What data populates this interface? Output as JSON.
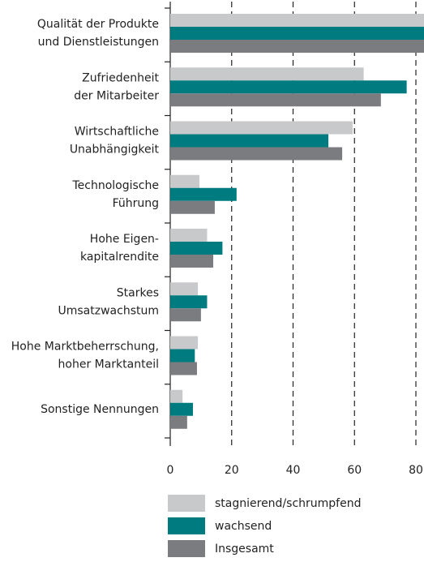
{
  "chart_data": {
    "type": "hbar",
    "categories": [
      [
        "Qualität der Produkte",
        "und Dienstleistungen"
      ],
      [
        "Zufriedenheit",
        "der Mitarbeiter"
      ],
      [
        "Wirtschaftliche",
        "Unabhängigkeit"
      ],
      [
        "Technologische",
        "Führung"
      ],
      [
        "Hohe Eigen-",
        "kapitalrendite"
      ],
      [
        "Starkes",
        "Umsatzwachstum"
      ],
      [
        "Hohe Marktbeherrschung,",
        "hoher Marktanteil"
      ],
      [
        "Sonstige Nennungen"
      ]
    ],
    "series": [
      {
        "name": "stagnierend/schrumpfend",
        "color": "#c8c9cb",
        "values": [
          84,
          63,
          59.4,
          9.5,
          12,
          9,
          9,
          4
        ]
      },
      {
        "name": "wachsend",
        "color": "#007b7f",
        "values": [
          84,
          77,
          51.5,
          21.6,
          17,
          12,
          8,
          7.4
        ]
      },
      {
        "name": "Insgesamt",
        "color": "#7b7c80",
        "values": [
          84,
          68.6,
          56,
          14.5,
          14,
          10,
          8.7,
          5.5
        ]
      }
    ],
    "xlim": [
      0,
      82.6
    ],
    "xticks": [
      0,
      20,
      40,
      60,
      80
    ],
    "grid": true
  }
}
